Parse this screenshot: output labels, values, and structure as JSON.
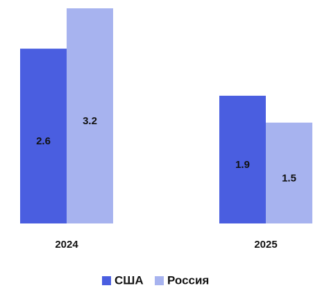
{
  "chart_data": {
    "type": "bar",
    "categories": [
      "2024",
      "2025"
    ],
    "series": [
      {
        "name": "США",
        "color": "#4a5ee0",
        "values": [
          2.6,
          1.9
        ]
      },
      {
        "name": "Россия",
        "color": "#a7b3ef",
        "values": [
          3.2,
          1.5
        ]
      }
    ],
    "legend": "bottom"
  }
}
